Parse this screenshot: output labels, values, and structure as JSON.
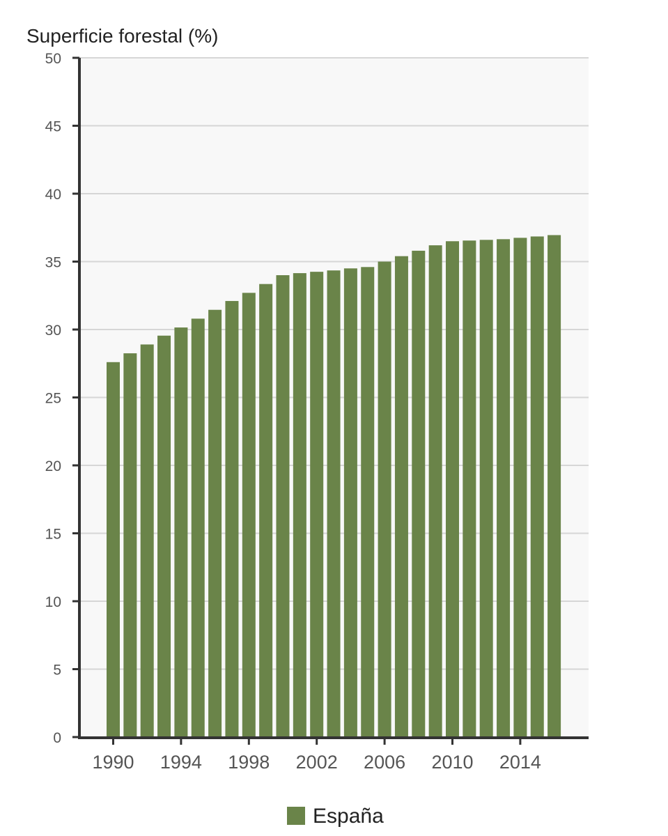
{
  "chart_data": {
    "type": "bar",
    "ylabel": "Superficie forestal (%)",
    "ylim": [
      0,
      50
    ],
    "yticks": [
      0,
      5,
      10,
      15,
      20,
      25,
      30,
      35,
      40,
      45,
      50
    ],
    "xticks": [
      1990,
      1994,
      1998,
      2002,
      2006,
      2010,
      2014
    ],
    "grid": true,
    "legend_position": "bottom",
    "colors": {
      "bar": "#6a8449",
      "plot_bg": "#f8f8f8",
      "grid": "#d6d6d6",
      "axis": "#333333"
    },
    "series": [
      {
        "name": "España",
        "x": [
          1990,
          1991,
          1992,
          1993,
          1994,
          1995,
          1996,
          1997,
          1998,
          1999,
          2000,
          2001,
          2002,
          2003,
          2004,
          2005,
          2006,
          2007,
          2008,
          2009,
          2010,
          2011,
          2012,
          2013,
          2014,
          2015,
          2016
        ],
        "values": [
          27.6,
          28.25,
          28.9,
          29.55,
          30.15,
          30.8,
          31.45,
          32.1,
          32.7,
          33.35,
          34.0,
          34.15,
          34.25,
          34.35,
          34.5,
          34.6,
          35.0,
          35.4,
          35.8,
          36.2,
          36.5,
          36.55,
          36.6,
          36.65,
          36.75,
          36.85,
          36.95
        ]
      }
    ]
  }
}
